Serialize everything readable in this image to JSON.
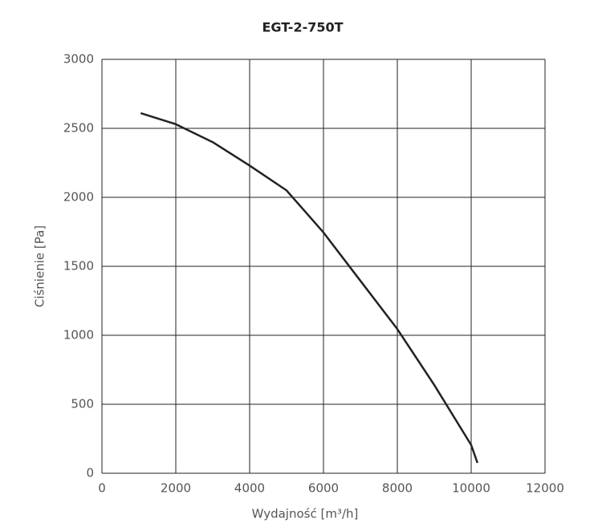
{
  "chart_data": {
    "type": "line",
    "title": "EGT-2-750T",
    "x_label": "Wydajność [m³/h]",
    "y_label": "Ciśnienie [Pa]",
    "xlim": [
      0,
      12000
    ],
    "ylim": [
      0,
      3000
    ],
    "xticks": [
      0,
      2000,
      4000,
      6000,
      8000,
      10000,
      12000
    ],
    "yticks": [
      0,
      500,
      1000,
      1500,
      2000,
      2500,
      3000
    ],
    "grid": true,
    "series": [
      {
        "color": "#222222",
        "x": [
          1050,
          2000,
          3000,
          4000,
          5000,
          6000,
          7000,
          8000,
          9000,
          10000,
          10170
        ],
        "values": [
          2610,
          2530,
          2400,
          2230,
          2050,
          1745,
          1395,
          1045,
          640,
          205,
          75
        ]
      }
    ]
  }
}
